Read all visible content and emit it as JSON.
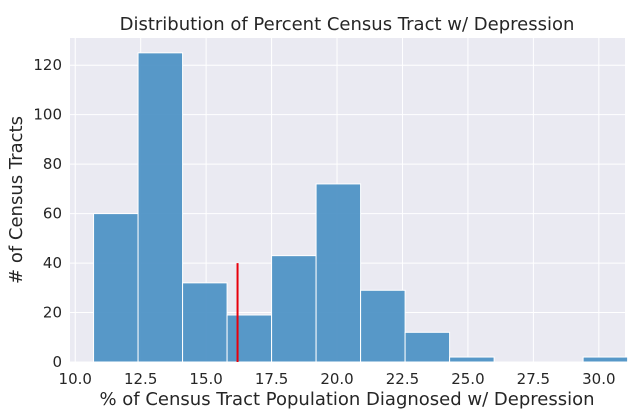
{
  "chart_data": {
    "type": "bar",
    "subtype": "histogram",
    "title": "Distribution of Percent Census Tract w/ Depression",
    "xlabel": "% of Census Tract Population Diagnosed w/ Depression",
    "ylabel": "# of Census Tracts",
    "xlim": [
      9.8,
      31.0
    ],
    "ylim": [
      0,
      131
    ],
    "xticks": [
      10.0,
      12.5,
      15.0,
      17.5,
      20.0,
      22.5,
      25.0,
      27.5,
      30.0
    ],
    "xtick_labels": [
      "10.0",
      "12.5",
      "15.0",
      "17.5",
      "20.0",
      "22.5",
      "25.0",
      "27.5",
      "30.0"
    ],
    "yticks": [
      0,
      20,
      40,
      60,
      80,
      100,
      120
    ],
    "ytick_labels": [
      "0",
      "20",
      "40",
      "60",
      "80",
      "100",
      "120"
    ],
    "bins": [
      {
        "start": 10.7,
        "end": 12.4,
        "count": 60
      },
      {
        "start": 12.4,
        "end": 14.1,
        "count": 125
      },
      {
        "start": 14.1,
        "end": 15.8,
        "count": 32
      },
      {
        "start": 15.8,
        "end": 17.5,
        "count": 19
      },
      {
        "start": 17.5,
        "end": 19.2,
        "count": 43
      },
      {
        "start": 19.2,
        "end": 20.9,
        "count": 72
      },
      {
        "start": 20.9,
        "end": 22.6,
        "count": 29
      },
      {
        "start": 22.6,
        "end": 24.3,
        "count": 12
      },
      {
        "start": 24.3,
        "end": 26.0,
        "count": 2
      },
      {
        "start": 26.0,
        "end": 27.7,
        "count": 0
      },
      {
        "start": 27.7,
        "end": 29.4,
        "count": 0
      },
      {
        "start": 29.4,
        "end": 31.1,
        "count": 2
      }
    ],
    "reference_line": {
      "x": 16.2,
      "y_top": 40,
      "color": "#e8000b"
    },
    "grid": true,
    "background": "#eaeaf2",
    "bar_color": "#4a90c4"
  }
}
